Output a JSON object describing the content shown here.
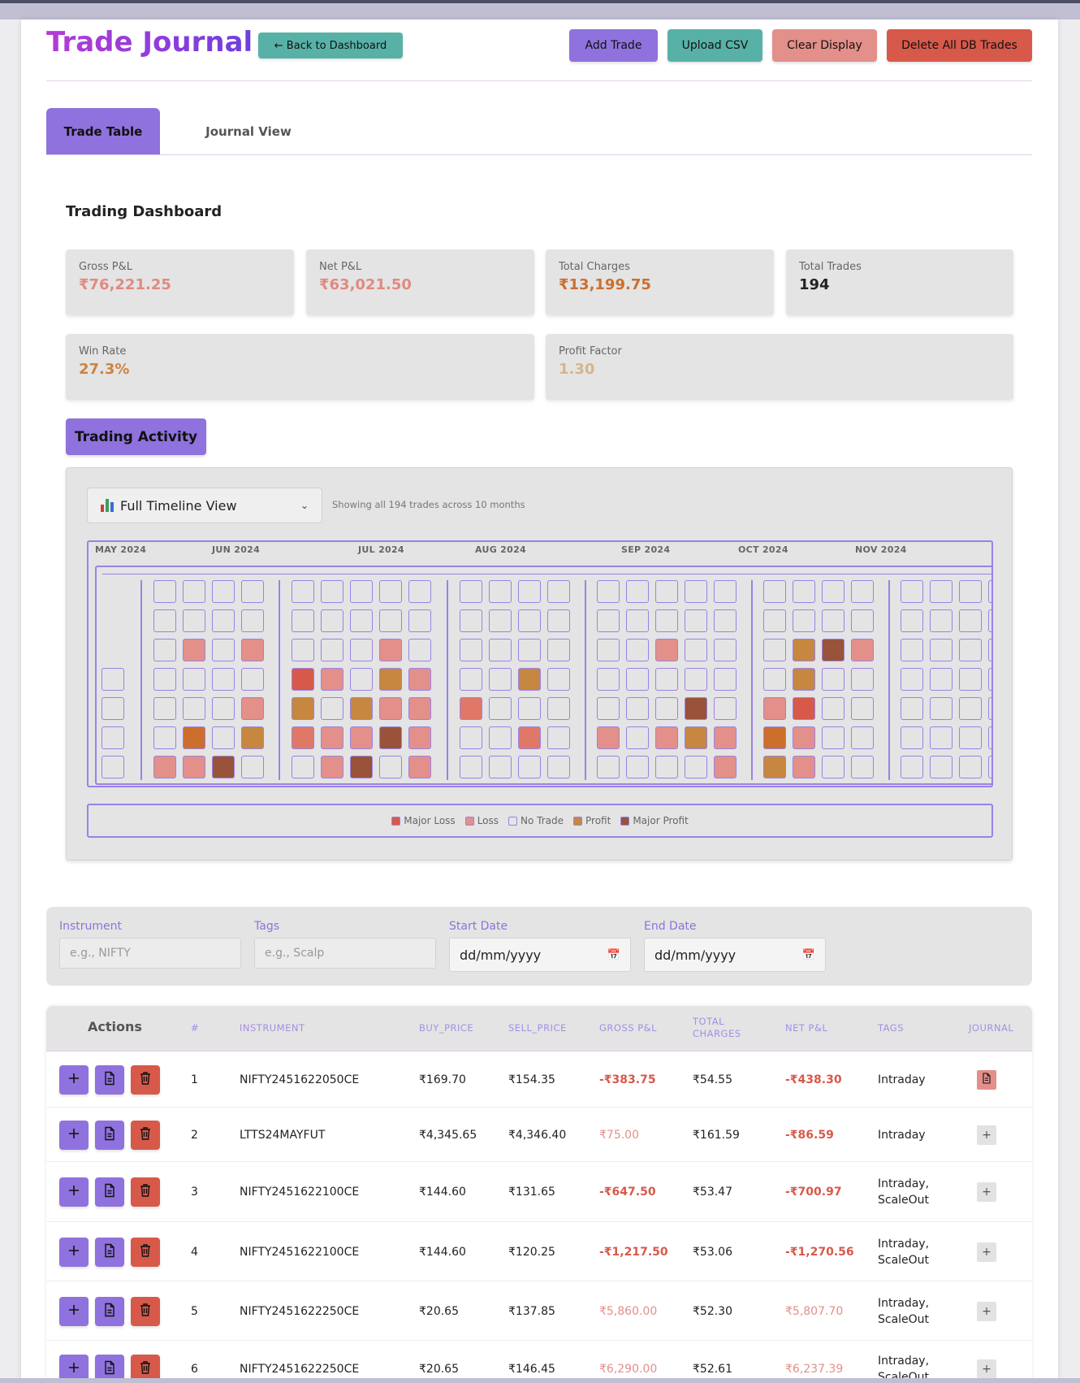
{
  "header": {
    "title": "Trade Journal",
    "back_label": "← Back to Dashboard",
    "add_label": "Add Trade",
    "upload_label": "Upload CSV",
    "clear_label": "Clear Display",
    "delete_label": "Delete All DB Trades"
  },
  "tabs": [
    {
      "label": "Trade Table",
      "active": true
    },
    {
      "label": "Journal View",
      "active": false
    }
  ],
  "dashboard": {
    "title": "Trading Dashboard",
    "stats": [
      {
        "label": "Gross P&L",
        "value": "₹76,221.25",
        "color": "#e08a80"
      },
      {
        "label": "Net P&L",
        "value": "₹63,021.50",
        "color": "#e08a80"
      },
      {
        "label": "Total Charges",
        "value": "₹13,199.75",
        "color": "#cc6e2c"
      },
      {
        "label": "Total Trades",
        "value": "194",
        "color": "#222222"
      },
      {
        "label": "Win Rate",
        "value": "27.3%",
        "color": "#cc8440"
      },
      {
        "label": "Profit Factor",
        "value": "1.30",
        "color": "#d8b48a"
      }
    ]
  },
  "activity": {
    "button_label": "Trading Activity",
    "view_select": "Full Timeline View",
    "showing_text": "Showing all 194 trades across 10 months",
    "months": [
      "MAY 2024",
      "JUN 2024",
      "JUL 2024",
      "AUG 2024",
      "SEP 2024",
      "OCT 2024",
      "NOV 2024"
    ],
    "legend": [
      {
        "label": "Major Loss",
        "color": "#d7594a"
      },
      {
        "label": "Loss",
        "color": "#e38f8a"
      },
      {
        "label": "No Trade",
        "color": "none"
      },
      {
        "label": "Profit",
        "color": "#c68840"
      },
      {
        "label": "Major Profit",
        "color": "#98533a"
      }
    ],
    "colors": {
      "major_loss": "#d7594a",
      "loss": "#e38f8a",
      "loss_mid": "#e07868",
      "profit": "#c68840",
      "profit_orange": "#cc6e2c",
      "major_profit": "#98533a"
    },
    "weeks": [
      [
        "",
        "",
        "",
        "",
        "",
        "",
        ""
      ],
      [
        "",
        "",
        "",
        "",
        "",
        "",
        "L"
      ],
      [
        "",
        "",
        "L",
        "",
        "",
        "PO",
        "L"
      ],
      [
        "",
        "",
        "",
        "",
        "",
        "",
        "MP"
      ],
      [
        "",
        "",
        "L",
        "",
        "L",
        "P",
        ""
      ],
      [
        "",
        "",
        "",
        "ML",
        "P",
        "LM",
        ""
      ],
      [
        "",
        "",
        "",
        "L",
        "",
        "L",
        "L"
      ],
      [
        "",
        "",
        "",
        "",
        "P",
        "L",
        "MP"
      ],
      [
        "",
        "",
        "L",
        "P",
        "L",
        "MP",
        ""
      ],
      [
        "",
        "",
        "",
        "L",
        "L",
        "L",
        "L"
      ],
      [
        "",
        "",
        "",
        "",
        "LM",
        "",
        ""
      ],
      [
        "",
        "",
        "",
        "",
        "",
        "",
        ""
      ],
      [
        "",
        "",
        "",
        "P",
        "",
        "LM",
        ""
      ],
      [
        "",
        "",
        "",
        "",
        "",
        "",
        ""
      ],
      [
        "",
        "",
        "",
        "",
        "",
        "L",
        ""
      ],
      [
        "",
        "",
        "",
        "",
        "",
        "",
        ""
      ],
      [
        "",
        "",
        "L",
        "",
        "",
        "L",
        ""
      ],
      [
        "",
        "",
        "",
        "",
        "MP",
        "P",
        ""
      ],
      [
        "",
        "",
        "",
        "",
        "",
        "L",
        "L"
      ],
      [
        "",
        "",
        "",
        "",
        "L",
        "PO",
        "P"
      ],
      [
        "",
        "",
        "P",
        "P",
        "ML",
        "L",
        "L"
      ],
      [
        "",
        "",
        "MP",
        "",
        "",
        "",
        ""
      ],
      [
        "",
        "",
        "L",
        "",
        "",
        "",
        ""
      ],
      [
        "",
        "",
        "",
        "",
        "",
        "",
        ""
      ],
      [
        "",
        "",
        "",
        "",
        "",
        "",
        ""
      ],
      [
        "",
        "",
        "",
        "",
        "",
        "",
        ""
      ],
      [
        "",
        "",
        "",
        "",
        "",
        "",
        ""
      ]
    ]
  },
  "filters": {
    "instrument_label": "Instrument",
    "instrument_placeholder": "e.g., NIFTY",
    "tags_label": "Tags",
    "tags_placeholder": "e.g., Scalp",
    "start_label": "Start Date",
    "start_value": "dd/mm/yyyy",
    "end_label": "End Date",
    "end_value": "dd/mm/yyyy"
  },
  "table": {
    "headers": {
      "actions": "Actions",
      "num": "#",
      "instrument": "INSTRUMENT",
      "buy": "BUY_PRICE",
      "sell": "SELL_PRICE",
      "gross": "GROSS P&L",
      "charges": "TOTAL CHARGES",
      "net": "NET P&L",
      "tags": "TAGS",
      "journal": "JOURNAL"
    },
    "rows": [
      {
        "num": "1",
        "instrument": "NIFTY2451622050CE",
        "buy": "₹169.70",
        "sell": "₹154.35",
        "gross": "-₹383.75",
        "charges": "₹54.55",
        "net": "-₹438.30",
        "tags": "Intraday",
        "journal": "doc"
      },
      {
        "num": "2",
        "instrument": "LTTS24MAYFUT",
        "buy": "₹4,345.65",
        "sell": "₹4,346.40",
        "gross": "₹75.00",
        "charges": "₹161.59",
        "net": "-₹86.59",
        "tags": "Intraday",
        "journal": "plus"
      },
      {
        "num": "3",
        "instrument": "NIFTY2451622100CE",
        "buy": "₹144.60",
        "sell": "₹131.65",
        "gross": "-₹647.50",
        "charges": "₹53.47",
        "net": "-₹700.97",
        "tags": "Intraday, ScaleOut",
        "journal": "plus"
      },
      {
        "num": "4",
        "instrument": "NIFTY2451622100CE",
        "buy": "₹144.60",
        "sell": "₹120.25",
        "gross": "-₹1,217.50",
        "charges": "₹53.06",
        "net": "-₹1,270.56",
        "tags": "Intraday, ScaleOut",
        "journal": "plus"
      },
      {
        "num": "5",
        "instrument": "NIFTY2451622250CE",
        "buy": "₹20.65",
        "sell": "₹137.85",
        "gross": "₹5,860.00",
        "charges": "₹52.30",
        "net": "₹5,807.70",
        "tags": "Intraday, ScaleOut",
        "journal": "plus"
      },
      {
        "num": "6",
        "instrument": "NIFTY2451622250CE",
        "buy": "₹20.65",
        "sell": "₹146.45",
        "gross": "₹6,290.00",
        "charges": "₹52.61",
        "net": "₹6,237.39",
        "tags": "Intraday, ScaleOut",
        "journal": "plus"
      }
    ]
  }
}
